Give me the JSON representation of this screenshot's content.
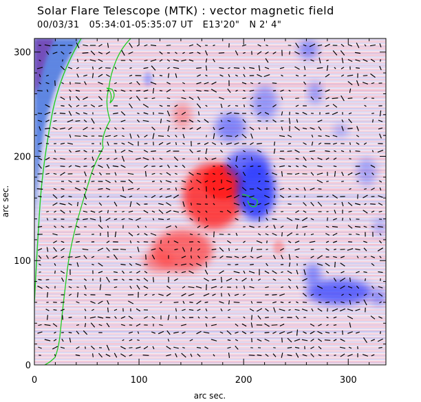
{
  "header": {
    "title": "Solar Flare Telescope (MTK) : vector magnetic field",
    "date": "00/03/31",
    "time_range": "05:34:01-05:35:07 UT",
    "position_lon": "E13'20\"",
    "position_lat": "N 2' 4\""
  },
  "axes": {
    "xlabel": "arc sec.",
    "ylabel": "arc sec.",
    "x_ticks": [
      "0",
      "100",
      "200",
      "300"
    ],
    "y_ticks": [
      "0",
      "100",
      "200",
      "300"
    ]
  },
  "colors": {
    "positive_polarity": "#ff3b3b",
    "negative_polarity": "#3b4dff",
    "contour": "#22cc22",
    "vector": "#000000"
  },
  "icons": {
    "vector": "short-line-segment"
  }
}
